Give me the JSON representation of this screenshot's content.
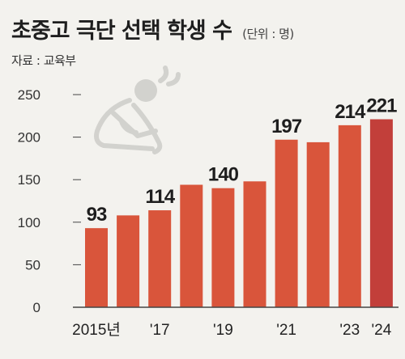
{
  "header": {
    "title": "초중고 극단 선택 학생 수",
    "unit": "(단위 : 명)",
    "source": "자료 : 교육부"
  },
  "icon": "distressed-person-icon",
  "colors": {
    "bar": "#d9553b",
    "bar_highlight": "#c23f3a",
    "axis": "#444444",
    "gridline": "#c9c8c3",
    "background": "#f3f2ee"
  },
  "chart_data": {
    "type": "bar",
    "categories": [
      "2015",
      "2016",
      "2017",
      "2018",
      "2019",
      "2020",
      "2021",
      "2022",
      "2023",
      "2024"
    ],
    "values": [
      93,
      108,
      114,
      144,
      140,
      148,
      197,
      194,
      214,
      221
    ],
    "x_tick_labels": [
      "2015년",
      "",
      "'17",
      "",
      "'19",
      "",
      "'21",
      "",
      "'23",
      "'24"
    ],
    "data_labels": [
      "93",
      "",
      "114",
      "",
      "140",
      "",
      "197",
      "",
      "214",
      "221"
    ],
    "y_ticks": [
      0,
      50,
      100,
      150,
      200,
      250
    ],
    "ylim": [
      0,
      250
    ],
    "grid": "horizontal-dashes-left",
    "highlight_index": 9
  }
}
